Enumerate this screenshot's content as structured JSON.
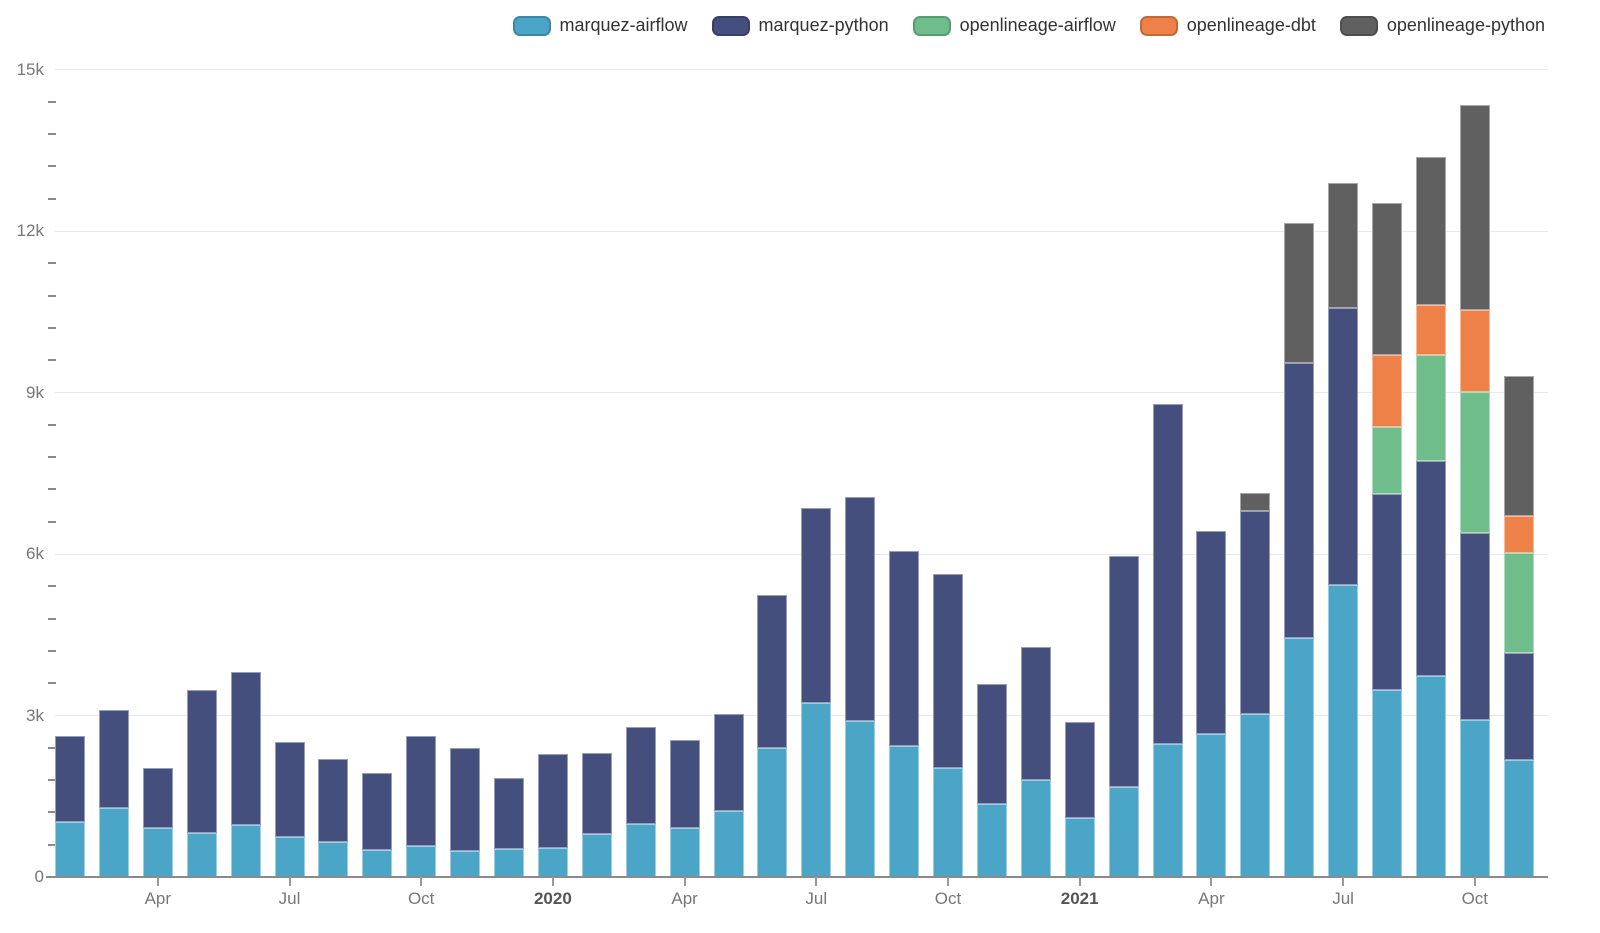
{
  "chart_data": {
    "type": "bar",
    "stacked": true,
    "title": "",
    "legend_position": "top-right",
    "grid": true,
    "months": [
      "2019-02",
      "2019-03",
      "2019-04",
      "2019-05",
      "2019-06",
      "2019-07",
      "2019-08",
      "2019-09",
      "2019-10",
      "2019-11",
      "2019-12",
      "2020-01",
      "2020-02",
      "2020-03",
      "2020-04",
      "2020-05",
      "2020-06",
      "2020-07",
      "2020-08",
      "2020-09",
      "2020-10",
      "2020-11",
      "2020-12",
      "2021-01",
      "2021-02",
      "2021-03",
      "2021-04",
      "2021-05",
      "2021-06",
      "2021-07",
      "2021-08",
      "2021-09",
      "2021-10",
      "2021-11"
    ],
    "series": [
      {
        "name": "marquez-airflow",
        "color": "#4BA5C7",
        "values": [
          1030,
          1290,
          905,
          810,
          970,
          740,
          645,
          505,
          580,
          485,
          520,
          540,
          800,
          990,
          915,
          1225,
          2400,
          3225,
          2900,
          2435,
          2020,
          1350,
          1800,
          1100,
          1665,
          2465,
          2650,
          3030,
          4435,
          5425,
          3475,
          3735,
          2915,
          2175
        ]
      },
      {
        "name": "marquez-python",
        "color": "#454F7D",
        "values": [
          1580,
          1810,
          1120,
          2660,
          2830,
          1760,
          1540,
          1420,
          2040,
          1915,
          1320,
          1750,
          1505,
          1795,
          1630,
          1800,
          2830,
          3635,
          4165,
          3630,
          3605,
          2230,
          2465,
          1780,
          4290,
          6315,
          3775,
          3765,
          5115,
          5145,
          3645,
          3995,
          3470,
          1995
        ]
      },
      {
        "name": "openlineage-airflow",
        "color": "#70BD8C",
        "values": [
          0,
          0,
          0,
          0,
          0,
          0,
          0,
          0,
          0,
          0,
          0,
          0,
          0,
          0,
          0,
          0,
          0,
          0,
          0,
          0,
          0,
          0,
          0,
          0,
          0,
          0,
          0,
          0,
          0,
          0,
          1235,
          1970,
          2625,
          1845
        ]
      },
      {
        "name": "openlineage-dbt",
        "color": "#ED8147",
        "values": [
          0,
          0,
          0,
          0,
          0,
          0,
          0,
          0,
          0,
          0,
          0,
          0,
          0,
          0,
          0,
          0,
          0,
          0,
          0,
          0,
          0,
          0,
          0,
          0,
          0,
          0,
          0,
          0,
          0,
          0,
          1345,
          930,
          1525,
          695
        ]
      },
      {
        "name": "openlineage-python",
        "color": "#606060",
        "values": [
          0,
          0,
          0,
          0,
          0,
          0,
          0,
          0,
          0,
          0,
          0,
          0,
          0,
          0,
          0,
          0,
          0,
          0,
          0,
          0,
          0,
          0,
          0,
          0,
          0,
          0,
          0,
          345,
          2600,
          2320,
          2825,
          2750,
          3810,
          2590
        ]
      }
    ],
    "y_axis": {
      "min": 0,
      "max": 15000,
      "major_step": 3000,
      "minor_step": 600,
      "labels": [
        "0",
        "3k",
        "6k",
        "9k",
        "12k",
        "15k"
      ]
    },
    "x_axis": {
      "ticks": [
        {
          "month_index": 2,
          "label": "Apr",
          "bold": false
        },
        {
          "month_index": 5,
          "label": "Jul",
          "bold": false
        },
        {
          "month_index": 8,
          "label": "Oct",
          "bold": false
        },
        {
          "month_index": 11,
          "label": "2020",
          "bold": true
        },
        {
          "month_index": 14,
          "label": "Apr",
          "bold": false
        },
        {
          "month_index": 17,
          "label": "Jul",
          "bold": false
        },
        {
          "month_index": 20,
          "label": "Oct",
          "bold": false
        },
        {
          "month_index": 23,
          "label": "2021",
          "bold": true
        },
        {
          "month_index": 26,
          "label": "Apr",
          "bold": false
        },
        {
          "month_index": 29,
          "label": "Jul",
          "bold": false
        },
        {
          "month_index": 32,
          "label": "Oct",
          "bold": false
        }
      ]
    }
  },
  "colors": {
    "background": "#ffffff",
    "gridline": "#E4E9F2",
    "axis_line": "#8A8A8A",
    "tick_label": "#777777",
    "year_label": "#555555",
    "legend_text": "#333333"
  }
}
